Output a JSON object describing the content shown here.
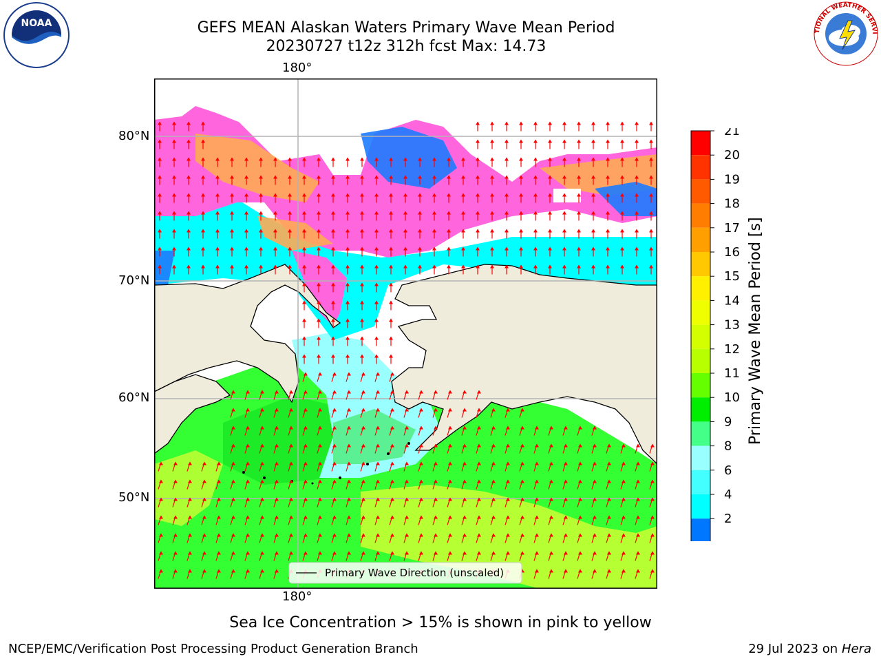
{
  "title_line1": "GEFS MEAN Alaskan Waters Primary Wave Mean Period",
  "title_line2": "20230727 t12z 312h fcst   Max: 14.73",
  "map": {
    "top_lon_label": "180°",
    "bottom_lon_label": "180°",
    "lat_labels": [
      "80°N",
      "70°N",
      "60°N",
      "50°N"
    ],
    "legend_label": "Primary Wave Direction (unscaled)"
  },
  "colorbar": {
    "label": "Primary Wave Mean Period [s]",
    "ticks": [
      "21",
      "20",
      "19",
      "18",
      "17",
      "16",
      "15",
      "14",
      "13",
      "12",
      "11",
      "10",
      "9",
      "8",
      "6",
      "4",
      "2"
    ],
    "colors_top_to_bottom": [
      "#ff0000",
      "#ff3300",
      "#ff5a00",
      "#ff7d00",
      "#ffa000",
      "#ffc800",
      "#fff000",
      "#f0ff00",
      "#d4ff00",
      "#b8ff00",
      "#66ff00",
      "#00ee00",
      "#44ff88",
      "#99ffff",
      "#44ffff",
      "#00ffff",
      "#0077ff"
    ],
    "extend_color": "#0000ff"
  },
  "colors": {
    "land": "#efecdc",
    "grid": "#b3b3b3",
    "arrow": "#ff0000",
    "ice_pink": "#ff66dd",
    "ice_orange": "#ffaa55"
  },
  "logos": {
    "left": "NOAA",
    "right": "NATIONAL WEATHER SERVICE"
  },
  "note": "Sea Ice Concentration > 15% is shown in pink to yellow",
  "footer_left": "NCEP/EMC/Verification Post Processing Product Generation Branch",
  "footer_right_date": "29 Jul 2023 on ",
  "footer_right_machine": "Hera"
}
